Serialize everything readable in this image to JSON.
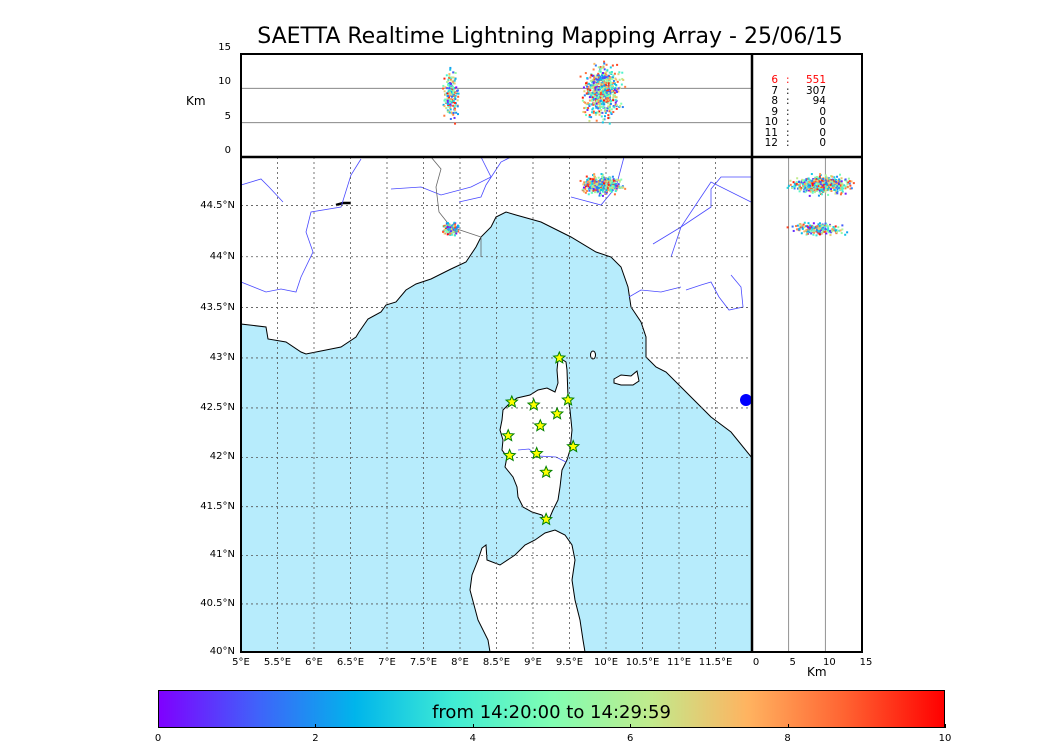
{
  "title": "SAETTA Realtime Lightning Mapping Array - 25/06/15",
  "colors": {
    "sea": "#b7ecfc",
    "land": "#ffffff",
    "river": "#4a4aff",
    "grid": "#555555",
    "station_fill": "#ffff00",
    "station_edge": "#008000"
  },
  "altitude_panel": {
    "unit_label": "Km",
    "y_ticks": [
      "15",
      "10",
      "5",
      "0"
    ],
    "reference_lines_km": [
      5,
      10
    ]
  },
  "side_panel": {
    "unit_label": "Km",
    "x_ticks": [
      "0",
      "5",
      "10",
      "15"
    ],
    "reference_lines_km": [
      5,
      10
    ]
  },
  "stats": [
    {
      "stations": "6",
      "sep": ":",
      "count": "551",
      "highlight": true
    },
    {
      "stations": "7",
      "sep": ":",
      "count": "307",
      "highlight": false
    },
    {
      "stations": "8",
      "sep": ":",
      "count": "94",
      "highlight": false
    },
    {
      "stations": "9",
      "sep": ":",
      "count": "0",
      "highlight": false
    },
    {
      "stations": "10",
      "sep": ":",
      "count": "0",
      "highlight": false
    },
    {
      "stations": "11",
      "sep": ":",
      "count": "0",
      "highlight": false
    },
    {
      "stations": "12",
      "sep": ":",
      "count": "0",
      "highlight": false
    }
  ],
  "chart_data": {
    "type": "scatter",
    "title": "SAETTA Realtime Lightning Mapping Array - 25/06/15",
    "map": {
      "lon_range": [
        5,
        12
      ],
      "lat_range": [
        40,
        45
      ],
      "lon_ticks": [
        "5°E",
        "5.5°E",
        "6°E",
        "6.5°E",
        "7°E",
        "7.5°E",
        "8°E",
        "8.5°E",
        "9°E",
        "9.5°E",
        "10°E",
        "10.5°E",
        "11°E",
        "11.5°E"
      ],
      "lat_ticks": [
        "40°N",
        "40.5°N",
        "41°N",
        "41.5°N",
        "42°N",
        "42.5°N",
        "43°N",
        "43.5°N",
        "44°N",
        "44.5°N"
      ],
      "grid": true
    },
    "altitude_range_km": [
      0,
      15
    ],
    "stations": [
      {
        "lon": 9.36,
        "lat": 43.0
      },
      {
        "lon": 8.71,
        "lat": 42.56
      },
      {
        "lon": 9.01,
        "lat": 42.53
      },
      {
        "lon": 9.48,
        "lat": 42.58
      },
      {
        "lon": 9.33,
        "lat": 42.44
      },
      {
        "lon": 9.1,
        "lat": 42.32
      },
      {
        "lon": 8.66,
        "lat": 42.22
      },
      {
        "lon": 9.55,
        "lat": 42.11
      },
      {
        "lon": 8.68,
        "lat": 42.02
      },
      {
        "lon": 9.05,
        "lat": 42.04
      },
      {
        "lon": 9.18,
        "lat": 41.85
      },
      {
        "lon": 9.18,
        "lat": 41.37
      }
    ],
    "lightning_clusters": [
      {
        "lon": 9.95,
        "lat": 44.7,
        "lon_spread": 0.22,
        "lat_spread": 0.07,
        "alt_km": [
          6,
          13
        ],
        "time_min": [
          0,
          10
        ]
      },
      {
        "lon": 7.88,
        "lat": 44.27,
        "lon_spread": 0.1,
        "lat_spread": 0.05,
        "alt_km": [
          6,
          12
        ],
        "time_min": [
          0,
          10
        ]
      }
    ],
    "colorbar": {
      "ticks": [
        "0",
        "2",
        "4",
        "6",
        "8",
        "10"
      ],
      "range": [
        0,
        10
      ],
      "label": "from 14:20:00 to 14:29:59",
      "colormap": "rainbow"
    }
  }
}
